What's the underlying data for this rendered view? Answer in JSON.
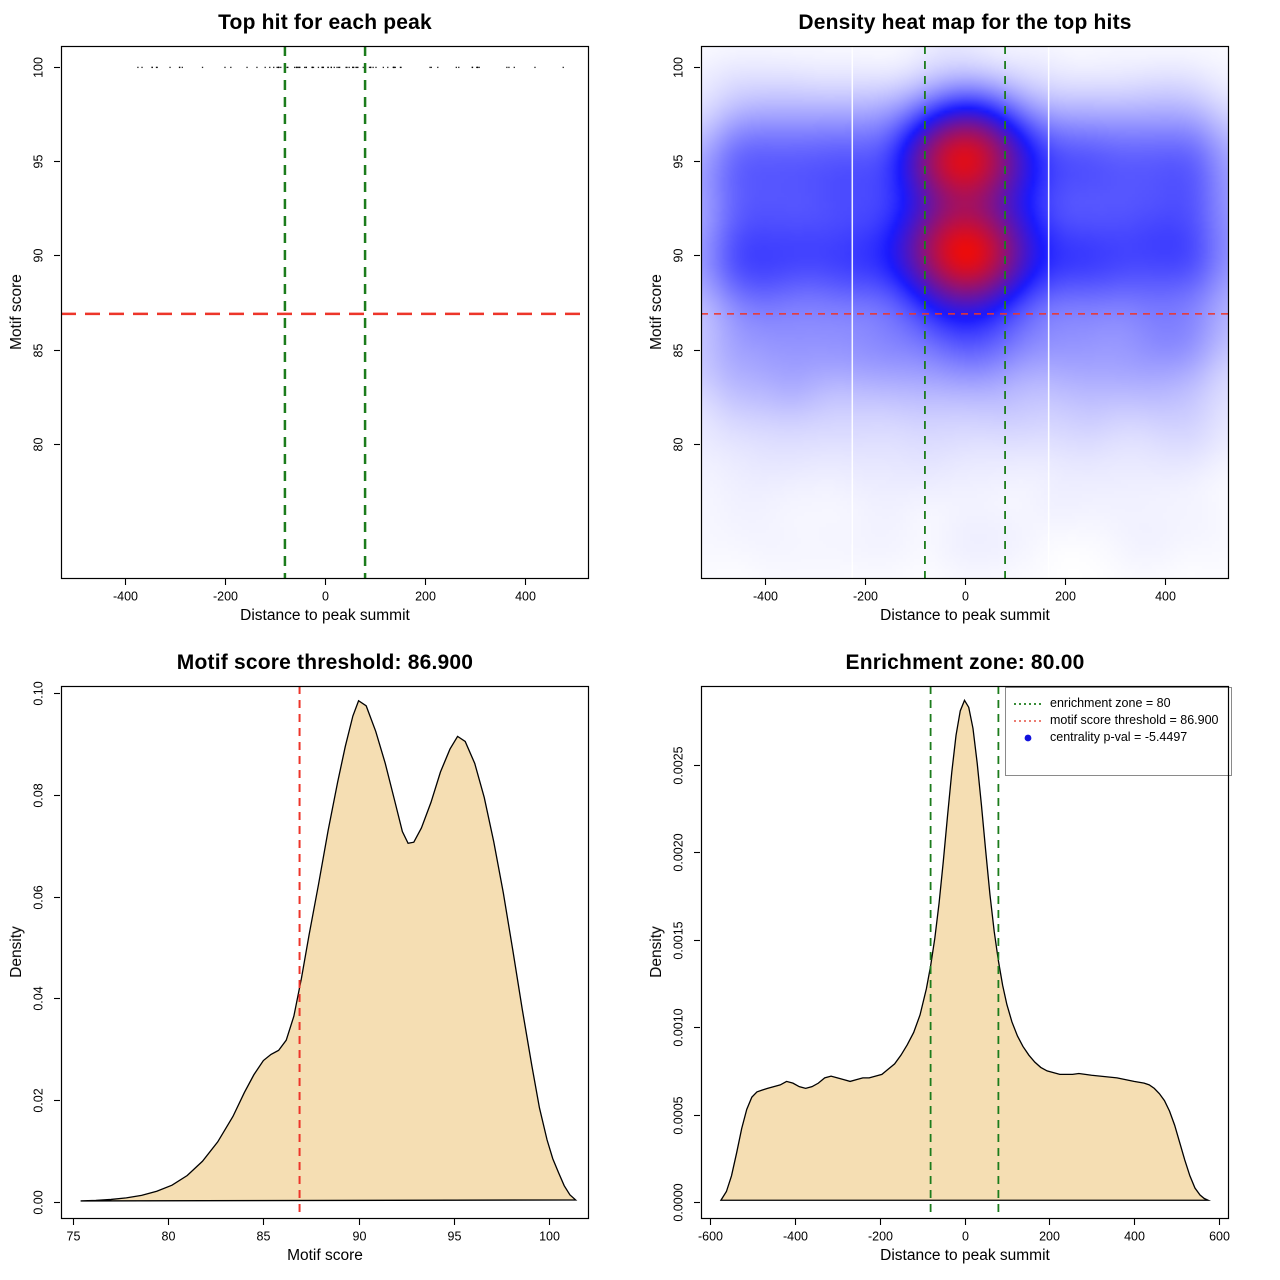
{
  "figure": {
    "background": "#ffffff",
    "description_title_row": [
      "Top hit for each peak",
      "Density heat map for the top hits"
    ],
    "motif_score_threshold": "86.900",
    "enrichment_zone": "80.00",
    "centrality_p_val": "-5.4497"
  },
  "colors": {
    "point_black": "#000000",
    "density_fill_wheat": "#f5deb3",
    "curve_stroke": "#000000",
    "red_dashed_line": "#ed352a",
    "green_dashed_line": "#1c7c1c",
    "legend_red_dotted": "#e96a5f",
    "legend_blue_point": "#1212dd",
    "heat_colormap": [
      "#ffffff",
      "#1a1aff",
      "#ec0c0c"
    ],
    "axis_box": "#000000"
  },
  "chart_data": {
    "panels": [
      {
        "type": "scatter",
        "title": "Top hit for each peak",
        "xlabel": "Distance to peak summit",
        "ylabel": "Motif score",
        "xlim": [
          -527,
          525
        ],
        "ylim": [
          72.9,
          101.1
        ],
        "xtick_values": [
          -400,
          -200,
          0,
          200,
          400
        ],
        "xtick_labels": [
          "-400",
          "-200",
          "0",
          "200",
          "400"
        ],
        "ytick_values": [
          80,
          85,
          90,
          95,
          100
        ],
        "ytick_labels": [
          "80",
          "85",
          "90",
          "95",
          "100"
        ],
        "hline_motif_threshold": 86.9,
        "vlines_enrichment_zone": [
          -80,
          80
        ],
        "y_quantization": 0.1,
        "points_model": {
          "n_points": 11500,
          "seed": 11,
          "cap_at_100_fraction": 0.008,
          "center_fraction": 0.34,
          "center_x_sigma": 62,
          "center_y_components": [
            [
              0.46,
              95.2,
              1.45
            ],
            [
              0.42,
              90.3,
              1.35
            ],
            [
              0.12,
              87.4,
              1.8
            ]
          ],
          "background_x_range": [
            -500,
            500
          ],
          "background_y_components": [
            [
              0.3,
              89.7,
              1.35
            ],
            [
              0.26,
              95.0,
              1.55
            ],
            [
              0.22,
              92.4,
              2.0
            ],
            [
              0.125,
              85.9,
              1.6
            ],
            [
              0.065,
              83.6,
              2.3
            ],
            [
              0.03,
              "uniform",
              74,
              100
            ]
          ]
        }
      },
      {
        "type": "heatmap",
        "title": "Density heat map for the top hits",
        "xlabel": "Distance to peak summit",
        "ylabel": "Motif score",
        "xlim": [
          -527,
          525
        ],
        "ylim": [
          72.9,
          101.1
        ],
        "xtick_values": [
          -400,
          -200,
          0,
          200,
          400
        ],
        "xtick_labels": [
          "-400",
          "-200",
          "0",
          "200",
          "400"
        ],
        "ytick_values": [
          80,
          85,
          90,
          95,
          100
        ],
        "ytick_labels": [
          "80",
          "85",
          "90",
          "95",
          "100"
        ],
        "hline_motif_threshold": 86.9,
        "vlines_enrichment_zone": [
          -80,
          80
        ],
        "colormap": [
          "#ffffff",
          "#1a1aff",
          "#ec0c0c"
        ],
        "hotspots": [
          [
            0,
            95.2
          ],
          [
            0,
            90.3
          ]
        ],
        "white_stripes_x": [
          -225,
          167
        ],
        "kde_model": {
          "n_samples": 26000,
          "seed": 11,
          "grid": 150,
          "blur_radius": 5,
          "blur_passes": 3,
          "gamma": 0.62
        }
      },
      {
        "type": "area",
        "title": "Motif score threshold: 86.900",
        "xlabel": "Motif score",
        "ylabel": "Density",
        "xlim": [
          74.37,
          102.05
        ],
        "ylim": [
          -0.00315,
          0.1014
        ],
        "xtick_values": [
          75,
          80,
          85,
          90,
          95,
          100
        ],
        "xtick_labels": [
          "75",
          "80",
          "85",
          "90",
          "95",
          "100"
        ],
        "ytick_values": [
          0,
          0.02,
          0.04,
          0.06,
          0.08,
          0.1
        ],
        "ytick_labels": [
          "0.00",
          "0.02",
          "0.04",
          "0.06",
          "0.08",
          "0.10"
        ],
        "vline_motif_threshold": 86.9,
        "curve": [
          [
            75.4,
            0.0002
          ],
          [
            76.2,
            0.0003
          ],
          [
            77.0,
            0.0005
          ],
          [
            77.8,
            0.0008
          ],
          [
            78.6,
            0.0013
          ],
          [
            79.4,
            0.0021
          ],
          [
            80.2,
            0.0033
          ],
          [
            81.0,
            0.0052
          ],
          [
            81.8,
            0.008
          ],
          [
            82.6,
            0.0118
          ],
          [
            83.4,
            0.0168
          ],
          [
            84.0,
            0.0215
          ],
          [
            84.5,
            0.025
          ],
          [
            85.0,
            0.0278
          ],
          [
            85.4,
            0.029
          ],
          [
            85.8,
            0.0298
          ],
          [
            86.2,
            0.0318
          ],
          [
            86.6,
            0.0365
          ],
          [
            87.0,
            0.044
          ],
          [
            87.4,
            0.0525
          ],
          [
            87.9,
            0.0625
          ],
          [
            88.4,
            0.073
          ],
          [
            88.9,
            0.0825
          ],
          [
            89.3,
            0.0895
          ],
          [
            89.7,
            0.0955
          ],
          [
            90.0,
            0.0985
          ],
          [
            90.4,
            0.0975
          ],
          [
            90.9,
            0.0925
          ],
          [
            91.4,
            0.0862
          ],
          [
            91.9,
            0.0788
          ],
          [
            92.3,
            0.0728
          ],
          [
            92.6,
            0.0705
          ],
          [
            92.9,
            0.0707
          ],
          [
            93.3,
            0.0735
          ],
          [
            93.8,
            0.0785
          ],
          [
            94.3,
            0.0845
          ],
          [
            94.8,
            0.089
          ],
          [
            95.2,
            0.0915
          ],
          [
            95.6,
            0.0905
          ],
          [
            96.1,
            0.0862
          ],
          [
            96.6,
            0.0795
          ],
          [
            97.1,
            0.0708
          ],
          [
            97.6,
            0.0608
          ],
          [
            98.1,
            0.0495
          ],
          [
            98.6,
            0.0378
          ],
          [
            99.1,
            0.0268
          ],
          [
            99.5,
            0.0185
          ],
          [
            99.9,
            0.0122
          ],
          [
            100.2,
            0.0085
          ],
          [
            100.5,
            0.0058
          ],
          [
            100.8,
            0.0032
          ],
          [
            101.1,
            0.0014
          ],
          [
            101.4,
            0.0004
          ]
        ]
      },
      {
        "type": "area",
        "title": "Enrichment zone: 80.00",
        "xlabel": "Distance to peak summit",
        "ylabel": "Density",
        "xlim": [
          -622,
          622
        ],
        "ylim": [
          -9.15e-05,
          0.002952
        ],
        "xtick_values": [
          -600,
          -400,
          -200,
          0,
          200,
          400,
          600
        ],
        "xtick_labels": [
          "-600",
          "-400",
          "-200",
          "0",
          "200",
          "400",
          "600"
        ],
        "ytick_values": [
          0,
          0.0005,
          0.001,
          0.0015,
          0.002,
          0.0025
        ],
        "ytick_labels": [
          "0.0000",
          "0.0005",
          "0.0010",
          "0.0015",
          "0.0020",
          "0.0025"
        ],
        "vlines_enrichment_zone": [
          -80,
          80
        ],
        "curve": [
          [
            -575,
            1e-05
          ],
          [
            -562,
            6e-05
          ],
          [
            -550,
            0.00015
          ],
          [
            -538,
            0.00028
          ],
          [
            -526,
            0.00042
          ],
          [
            -514,
            0.00053
          ],
          [
            -502,
            0.0006
          ],
          [
            -490,
            0.00063
          ],
          [
            -478,
            0.00064
          ],
          [
            -465,
            0.00065
          ],
          [
            -450,
            0.00066
          ],
          [
            -435,
            0.00067
          ],
          [
            -420,
            0.00069
          ],
          [
            -405,
            0.00068
          ],
          [
            -390,
            0.00066
          ],
          [
            -375,
            0.00065
          ],
          [
            -360,
            0.00066
          ],
          [
            -345,
            0.00068
          ],
          [
            -330,
            0.00071
          ],
          [
            -315,
            0.00072
          ],
          [
            -300,
            0.00071
          ],
          [
            -285,
            0.0007
          ],
          [
            -270,
            0.00069
          ],
          [
            -255,
            0.0007
          ],
          [
            -240,
            0.00071
          ],
          [
            -225,
            0.00071
          ],
          [
            -210,
            0.00072
          ],
          [
            -195,
            0.00073
          ],
          [
            -180,
            0.00076
          ],
          [
            -165,
            0.00079
          ],
          [
            -150,
            0.00084
          ],
          [
            -135,
            0.0009
          ],
          [
            -120,
            0.00097
          ],
          [
            -105,
            0.00107
          ],
          [
            -90,
            0.00122
          ],
          [
            -80,
            0.00135
          ],
          [
            -70,
            0.00151
          ],
          [
            -60,
            0.00171
          ],
          [
            -50,
            0.00195
          ],
          [
            -40,
            0.00221
          ],
          [
            -30,
            0.00246
          ],
          [
            -20,
            0.00267
          ],
          [
            -10,
            0.00281
          ],
          [
            0,
            0.00287
          ],
          [
            10,
            0.00283
          ],
          [
            20,
            0.00271
          ],
          [
            30,
            0.00251
          ],
          [
            40,
            0.00227
          ],
          [
            50,
            0.00201
          ],
          [
            60,
            0.00176
          ],
          [
            70,
            0.00155
          ],
          [
            80,
            0.00138
          ],
          [
            90,
            0.00124
          ],
          [
            100,
            0.00113
          ],
          [
            112,
            0.00103
          ],
          [
            125,
            0.00095
          ],
          [
            138,
            0.00089
          ],
          [
            152,
            0.00084
          ],
          [
            166,
            0.0008
          ],
          [
            180,
            0.00077
          ],
          [
            195,
            0.00075
          ],
          [
            210,
            0.00074
          ],
          [
            225,
            0.00073
          ],
          [
            240,
            0.00073
          ],
          [
            255,
            0.00073
          ],
          [
            270,
            0.000735
          ],
          [
            285,
            0.00073
          ],
          [
            300,
            0.000725
          ],
          [
            320,
            0.00072
          ],
          [
            340,
            0.000715
          ],
          [
            360,
            0.00071
          ],
          [
            380,
            0.0007
          ],
          [
            400,
            0.00069
          ],
          [
            412,
            0.000685
          ],
          [
            424,
            0.00068
          ],
          [
            436,
            0.00067
          ],
          [
            448,
            0.00065
          ],
          [
            460,
            0.00062
          ],
          [
            472,
            0.00058
          ],
          [
            484,
            0.00052
          ],
          [
            496,
            0.00044
          ],
          [
            508,
            0.00034
          ],
          [
            520,
            0.00024
          ],
          [
            532,
            0.00015
          ],
          [
            544,
            8e-05
          ],
          [
            556,
            4e-05
          ],
          [
            566,
            2e-05
          ],
          [
            575,
            1e-05
          ]
        ],
        "legend": {
          "items": [
            {
              "label": "enrichment zone = 80",
              "type": "dotted-line",
              "color": "#1c7c1c"
            },
            {
              "label": "motif score threshold = 86.900",
              "type": "dotted-line",
              "color": "#e96a5f"
            },
            {
              "label": "centrality p-val = -5.4497",
              "type": "point",
              "color": "#1212dd"
            }
          ]
        }
      }
    ]
  }
}
